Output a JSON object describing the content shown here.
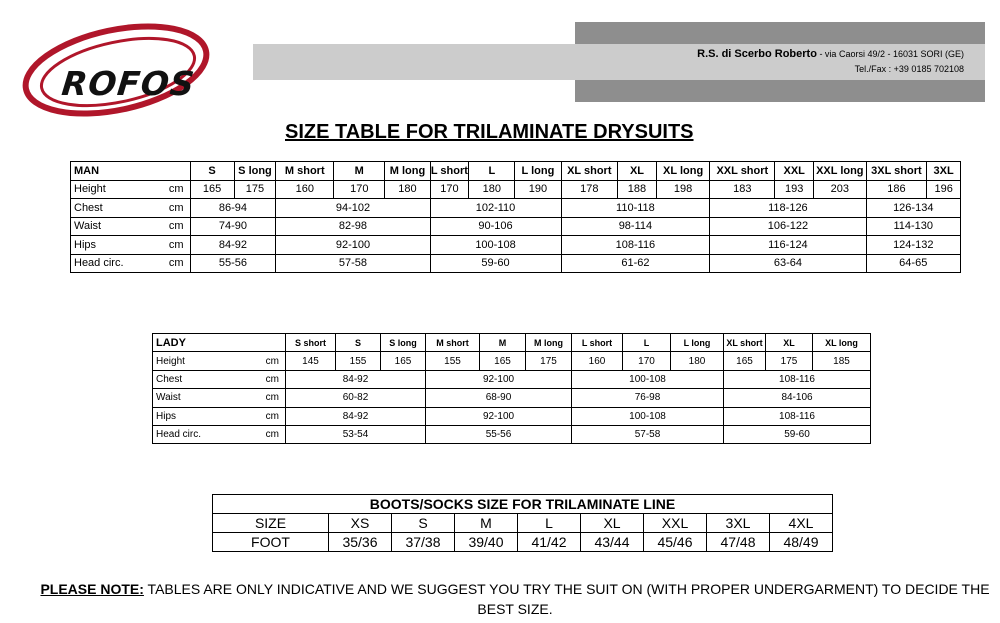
{
  "header": {
    "logo_text": "ROFOS",
    "company_name": "R.S. di Scerbo Roberto",
    "address": " - via Caorsi 49/2  - 16031  SORI (GE)",
    "telfax": "Tel./Fax : +39 0185 702108"
  },
  "title": "SIZE TABLE FOR TRILAMINATE DRYSUITS",
  "man_table": {
    "label": "MAN",
    "sizes": [
      "S",
      "S long",
      "M short",
      "M",
      "M long",
      "L short",
      "L",
      "L long",
      "XL short",
      "XL",
      "XL long",
      "XXL short",
      "XXL",
      "XXL long",
      "3XL short",
      "3XL"
    ],
    "height": {
      "name": "Height",
      "unit": "cm",
      "values": [
        "165",
        "175",
        "160",
        "170",
        "180",
        "170",
        "180",
        "190",
        "178",
        "188",
        "198",
        "183",
        "193",
        "203",
        "186",
        "196"
      ]
    },
    "rows": [
      {
        "name": "Chest",
        "unit": "cm",
        "values": [
          "86-94",
          "94-102",
          "102-110",
          "110-118",
          "118-126",
          "126-134"
        ]
      },
      {
        "name": "Waist",
        "unit": "cm",
        "values": [
          "74-90",
          "82-98",
          "90-106",
          "98-114",
          "106-122",
          "114-130"
        ]
      },
      {
        "name": "Hips",
        "unit": "cm",
        "values": [
          "84-92",
          "92-100",
          "100-108",
          "108-116",
          "116-124",
          "124-132"
        ]
      },
      {
        "name": "Head circ.",
        "unit": "cm",
        "values": [
          "55-56",
          "57-58",
          "59-60",
          "61-62",
          "63-64",
          "64-65"
        ]
      }
    ]
  },
  "lady_table": {
    "label": "LADY",
    "sizes": [
      "S short",
      "S",
      "S long",
      "M short",
      "M",
      "M long",
      "L  short",
      "L",
      "L   long",
      "XL short",
      "XL",
      "XL long"
    ],
    "height": {
      "name": "Height",
      "unit": "cm",
      "values": [
        "145",
        "155",
        "165",
        "155",
        "165",
        "175",
        "160",
        "170",
        "180",
        "165",
        "175",
        "185"
      ]
    },
    "rows": [
      {
        "name": "Chest",
        "unit": "cm",
        "values": [
          "84-92",
          "92-100",
          "100-108",
          "108-116"
        ]
      },
      {
        "name": "Waist",
        "unit": "cm",
        "values": [
          "60-82",
          "68-90",
          "76-98",
          "84-106"
        ]
      },
      {
        "name": "Hips",
        "unit": "cm",
        "values": [
          "84-92",
          "92-100",
          "100-108",
          "108-116"
        ]
      },
      {
        "name": "Head circ.",
        "unit": "cm",
        "values": [
          "53-54",
          "55-56",
          "57-58",
          "59-60"
        ]
      }
    ]
  },
  "boots_table": {
    "title": "BOOTS/SOCKS SIZE FOR TRILAMINATE LINE",
    "size_label": "SIZE",
    "sizes": [
      "XS",
      "S",
      "M",
      "L",
      "XL",
      "XXL",
      "3XL",
      "4XL"
    ],
    "foot_label": "FOOT",
    "foot": [
      "35/36",
      "37/38",
      "39/40",
      "41/42",
      "43/44",
      "45/46",
      "47/48",
      "48/49"
    ]
  },
  "note": {
    "label": "PLEASE NOTE:",
    "text": " TABLES ARE ONLY INDICATIVE AND WE SUGGEST YOU TRY THE SUIT ON (WITH PROPER UNDERGARMENT) TO DECIDE THE BEST SIZE."
  },
  "colors": {
    "logo_red": "#b0162a",
    "band_dark": "#8e8e8e",
    "band_light": "#cccccc"
  }
}
